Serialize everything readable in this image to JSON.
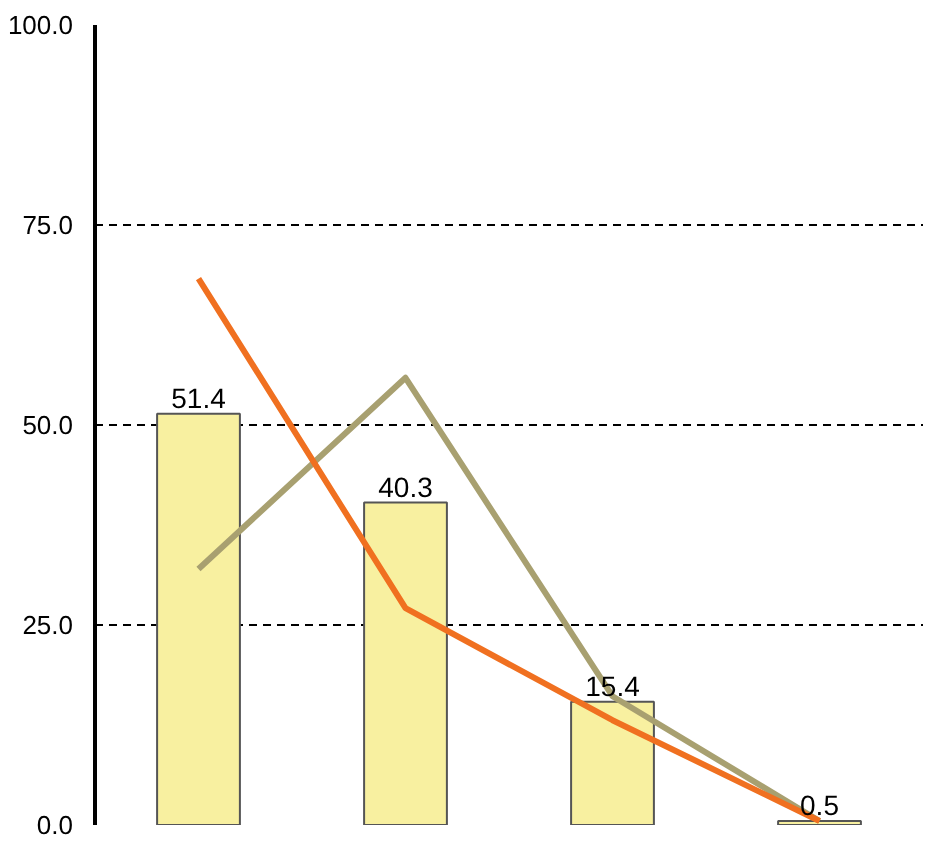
{
  "chart_data": {
    "type": "bar",
    "categories": [
      null,
      null,
      null,
      null
    ],
    "series": [
      {
        "color": "#f8f0a0",
        "values": [
          51.4,
          40.3,
          15.4,
          0.5
        ],
        "value_labels": [
          "51.4",
          "40.3",
          "15.4",
          "0.5"
        ]
      },
      {
        "type": "line",
        "color": "#a8a070",
        "values": [
          32.0,
          55.9,
          16.1,
          0.5
        ]
      },
      {
        "type": "line",
        "color": "#f07020",
        "values": [
          68.3,
          27.1,
          13.1,
          0.5
        ]
      }
    ],
    "ylim": [
      0,
      100
    ],
    "yticks": [
      {
        "value": 0,
        "label": "0.0"
      },
      {
        "value": 25,
        "label": "25.0"
      },
      {
        "value": 50,
        "label": "50.0"
      },
      {
        "value": 75,
        "label": "75.0"
      },
      {
        "value": 100,
        "label": "100.0"
      }
    ],
    "grid": "y",
    "line_style": "solid"
  }
}
